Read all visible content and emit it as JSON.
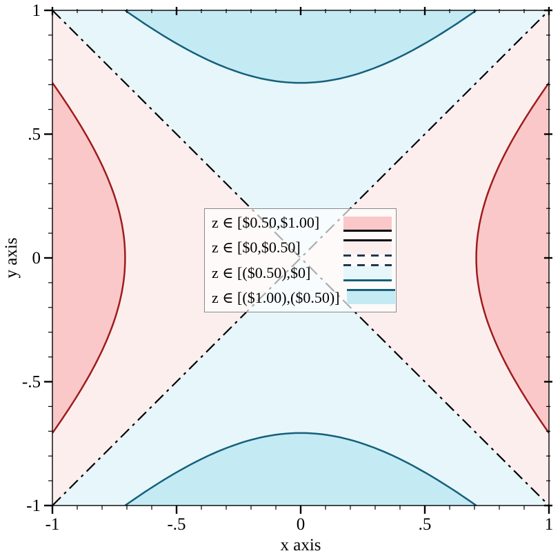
{
  "axes": {
    "x": {
      "label": "x axis",
      "range": [
        -1,
        1
      ],
      "major_ticks": [
        {
          "v": -1,
          "t": "-1"
        },
        {
          "v": -0.5,
          "t": "-.5"
        },
        {
          "v": 0,
          "t": "0"
        },
        {
          "v": 0.5,
          "t": ".5"
        },
        {
          "v": 1,
          "t": "1"
        }
      ],
      "minor_step": 0.1
    },
    "y": {
      "label": "y axis",
      "range": [
        -1,
        1
      ],
      "major_ticks": [
        {
          "v": -1,
          "t": "-1"
        },
        {
          "v": -0.5,
          "t": "-.5"
        },
        {
          "v": 0,
          "t": "0"
        },
        {
          "v": 0.5,
          "t": ".5"
        },
        {
          "v": 1,
          "t": "1"
        }
      ],
      "minor_step": 0.1
    }
  },
  "chart_data": {
    "type": "contour-intervals",
    "x_range": [
      -1,
      1
    ],
    "y_range": [
      -1,
      1
    ],
    "z_levels": [
      -1,
      -0.5,
      0,
      0.5,
      1
    ],
    "intervals": [
      {
        "z_min": 0.5,
        "z_max": 1.0,
        "label": "z ∈ [$0.50,$1.00]",
        "fill": "#fac8c8"
      },
      {
        "z_min": 0.0,
        "z_max": 0.5,
        "label": "z ∈ [$0,$0.50]",
        "fill": "#fdeeee"
      },
      {
        "z_min": -0.5,
        "z_max": 0.0,
        "label": "z ∈ [($0.50),$0]",
        "fill": "#e7f6fa"
      },
      {
        "z_min": -1.0,
        "z_max": -0.5,
        "label": "z ∈ [($1.00),($0.50)]",
        "fill": "#c4eaf4"
      }
    ],
    "contour_lines": [
      {
        "level": 0.5,
        "color": "#9e1b1b",
        "style": "solid",
        "width": 2.5
      },
      {
        "level": 0,
        "color": "#000000",
        "style": "dash-dot",
        "width": 2.2
      },
      {
        "level": -0.5,
        "color": "#14607a",
        "style": "solid",
        "width": 2.5
      }
    ],
    "frame_color": "#000000",
    "grid": false,
    "legend_position": "center"
  },
  "legend": {
    "rows": [
      {
        "label": "z ∈ [$0.50,$1.00]",
        "fill": "#fac8c8",
        "top": null,
        "bottom": {
          "color": "#000000",
          "style": "solid"
        }
      },
      {
        "label": "z ∈ [$0,$0.50]",
        "fill": "#fdeeee",
        "top": {
          "color": "#000000",
          "style": "solid"
        },
        "bottom": {
          "color": "#20384f",
          "style": "dashed"
        }
      },
      {
        "label": "z ∈ [($0.50),$0]",
        "fill": "#e7f6fa",
        "top": {
          "color": "#20384f",
          "style": "dashed"
        },
        "bottom": {
          "color": "#14607a",
          "style": "solid"
        }
      },
      {
        "label": "z ∈ [($1.00),($0.50)]",
        "fill": "#c4eaf4",
        "top": {
          "color": "#14607a",
          "style": "solid"
        },
        "bottom": null
      }
    ]
  }
}
